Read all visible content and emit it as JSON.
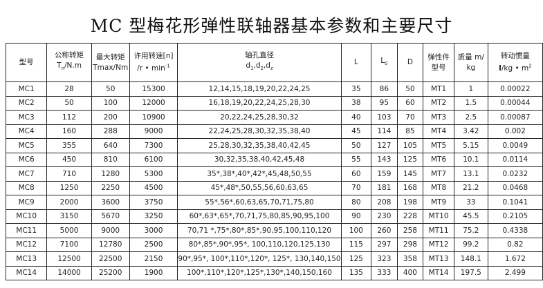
{
  "title": "MC 型梅花形弹性联轴器基本参数和主要尺寸",
  "headers": {
    "model": "型号",
    "tn_cn": "公称转矩",
    "tn_unit": "Tn/N.m",
    "tmax_cn": "最大转矩",
    "tmax_unit": "Tmax/Nm",
    "speed_cn": "许用转速[n]",
    "speed_unit": "/r • min-1",
    "bore_cn": "轴孔直径",
    "bore_unit": "d1,d2,dz",
    "L": "L",
    "L0": "L0",
    "D": "D",
    "elastic_cn1": "弹性件",
    "elastic_cn2": "型号",
    "mass_cn": "质量 m/",
    "mass_unit": "kg",
    "inertia_cn": "转动惯量",
    "inertia_unit": "I/kg • m2"
  },
  "rows": [
    [
      "MC1",
      "28",
      "50",
      "15300",
      "12,14,15,18,19,20,22,24,25",
      "35",
      "86",
      "50",
      "MT1",
      "1",
      "0.00022"
    ],
    [
      "MC2",
      "50",
      "100",
      "12000",
      "16,18,19,20,22,24,25,28,30",
      "38",
      "95",
      "60",
      "MT2",
      "1.5",
      "0.00044"
    ],
    [
      "MC3",
      "112",
      "200",
      "10900",
      "20,22,24,25,28,30,32",
      "40",
      "103",
      "70",
      "MT3",
      "2.5",
      "0.00087"
    ],
    [
      "MC4",
      "160",
      "288",
      "9000",
      "22,24,25,28,30,32,35,38,40",
      "45",
      "114",
      "85",
      "MT4",
      "3.42",
      "0.002"
    ],
    [
      "MC5",
      "355",
      "640",
      "7300",
      "25,28,30,32,35,38,40,42,45",
      "50",
      "127",
      "105",
      "MT5",
      "5.15",
      "0.0049"
    ],
    [
      "MC6",
      "450",
      "810",
      "6100",
      "30,32,35,38,40,42,45,48",
      "55",
      "143",
      "125",
      "MT6",
      "10.1",
      "0.0114"
    ],
    [
      "MC7",
      "710",
      "1280",
      "5300",
      "35*,38*,40*,42*,45,48,50,55",
      "60",
      "159",
      "145",
      "MT7",
      "13.1",
      "0.0232"
    ],
    [
      "MC8",
      "1250",
      "2250",
      "4500",
      "45*,48*,50,55,56,60,63,65",
      "70",
      "181",
      "168",
      "MT8",
      "21.2",
      "0.0468"
    ],
    [
      "MC9",
      "2000",
      "3600",
      "3750",
      "55*,56*,60,63,65,70,71,75,80",
      "80",
      "208",
      "198",
      "MT9",
      "33",
      "0.1041"
    ],
    [
      "MC10",
      "3150",
      "5670",
      "3250",
      "60*,63*,65*,70,71,75,80,85,90,95,100",
      "90",
      "230",
      "228",
      "MT10",
      "45.5",
      "0.2105"
    ],
    [
      "MC11",
      "5000",
      "9000",
      "3000",
      "70,71 *,75*,80*,85*,90,95,100,110,120",
      "100",
      "260",
      "258",
      "MT11",
      "75.2",
      "0.4338"
    ],
    [
      "MC12",
      "7100",
      "12780",
      "2500",
      "80*,85*,90*,95*, 100,110,120,125,130",
      "115",
      "297",
      "298",
      "MT12",
      "99.2",
      "0.82"
    ],
    [
      "MC13",
      "12500",
      "22500",
      "2150",
      "90*,95*, 100*,110*,120*,  125*, 130,140,150",
      "125",
      "323",
      "358",
      "MT13",
      "148.1",
      "1.672"
    ],
    [
      "MC14",
      "14000",
      "25200",
      "1900",
      "100*,110*,120*,125*,130*,140,150,160",
      "135",
      "333",
      "400",
      "MT14",
      "197.5",
      "2.499"
    ]
  ]
}
